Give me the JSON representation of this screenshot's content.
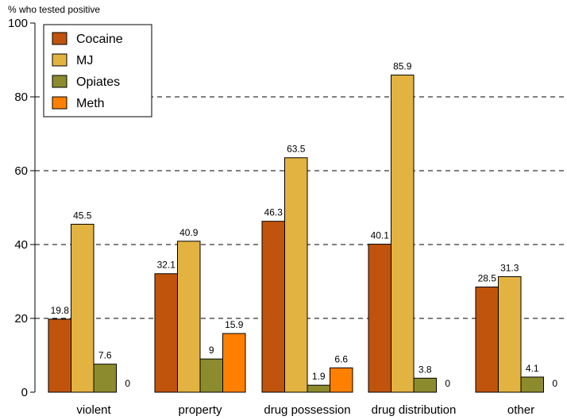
{
  "chart_data": {
    "type": "bar",
    "ylabel": "% who tested positive",
    "ylim": [
      0,
      100
    ],
    "yticks": [
      0,
      20,
      40,
      60,
      80,
      100
    ],
    "grid": "horizontal-dashed",
    "legend": "top-left",
    "categories": [
      "violent",
      "property",
      "drug possession",
      "drug distribution",
      "other"
    ],
    "series": [
      {
        "name": "Cocaine",
        "color": "#c0540c",
        "values": [
          19.8,
          32.1,
          46.3,
          40.1,
          28.5
        ]
      },
      {
        "name": "MJ",
        "color": "#e3b341",
        "values": [
          45.5,
          40.9,
          63.5,
          85.9,
          31.3
        ]
      },
      {
        "name": "Opiates",
        "color": "#8c8c2e",
        "values": [
          7.6,
          9,
          1.9,
          3.8,
          4.1
        ]
      },
      {
        "name": "Meth",
        "color": "#ff8000",
        "values": [
          0,
          15.9,
          6.6,
          0,
          0
        ]
      }
    ]
  }
}
